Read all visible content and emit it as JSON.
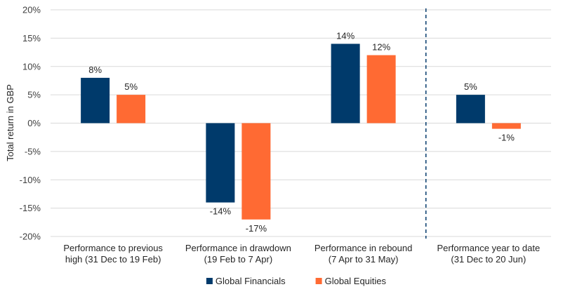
{
  "chart_data": {
    "type": "bar",
    "ylabel": "Total return in GBP",
    "xlabel": "",
    "title": "",
    "ylim": [
      -20,
      20
    ],
    "ytick_step": 5,
    "ytick_format": "%",
    "categories": [
      [
        "Performance to previous",
        "high (31 Dec to 19 Feb)"
      ],
      [
        "Performance in drawdown",
        "(19 Feb to 7 Apr)"
      ],
      [
        "Performance in rebound",
        "(7 Apr to 31 May)"
      ],
      [
        "Performance year to date",
        "(31 Dec to 20 Jun)"
      ]
    ],
    "series": [
      {
        "name": "Global Financials",
        "color": "#003a6b",
        "values": [
          8,
          -14,
          14,
          5
        ]
      },
      {
        "name": "Global Equities",
        "color": "#ff6a33",
        "values": [
          5,
          -17,
          12,
          -1
        ]
      }
    ],
    "data_labels": true,
    "grid": true,
    "legend": "bottom-center",
    "divider_after_category": 3,
    "divider_style": "dashed",
    "divider_color": "#003a6b"
  }
}
